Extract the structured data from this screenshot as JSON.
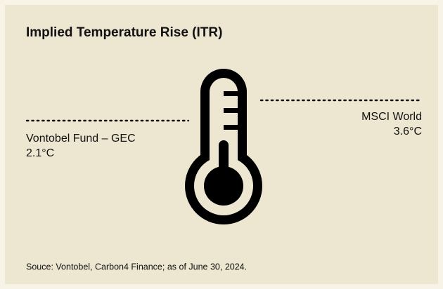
{
  "header": {
    "title": "Implied Temperature Rise (ITR)"
  },
  "left": {
    "label": "Vontobel Fund – GEC",
    "value": "2.1°C"
  },
  "right": {
    "label": "MSCI World",
    "value": "3.6°C"
  },
  "footer": {
    "source": "Souce: Vontobel, Carbon4 Finance; as of June 30, 2024."
  }
}
